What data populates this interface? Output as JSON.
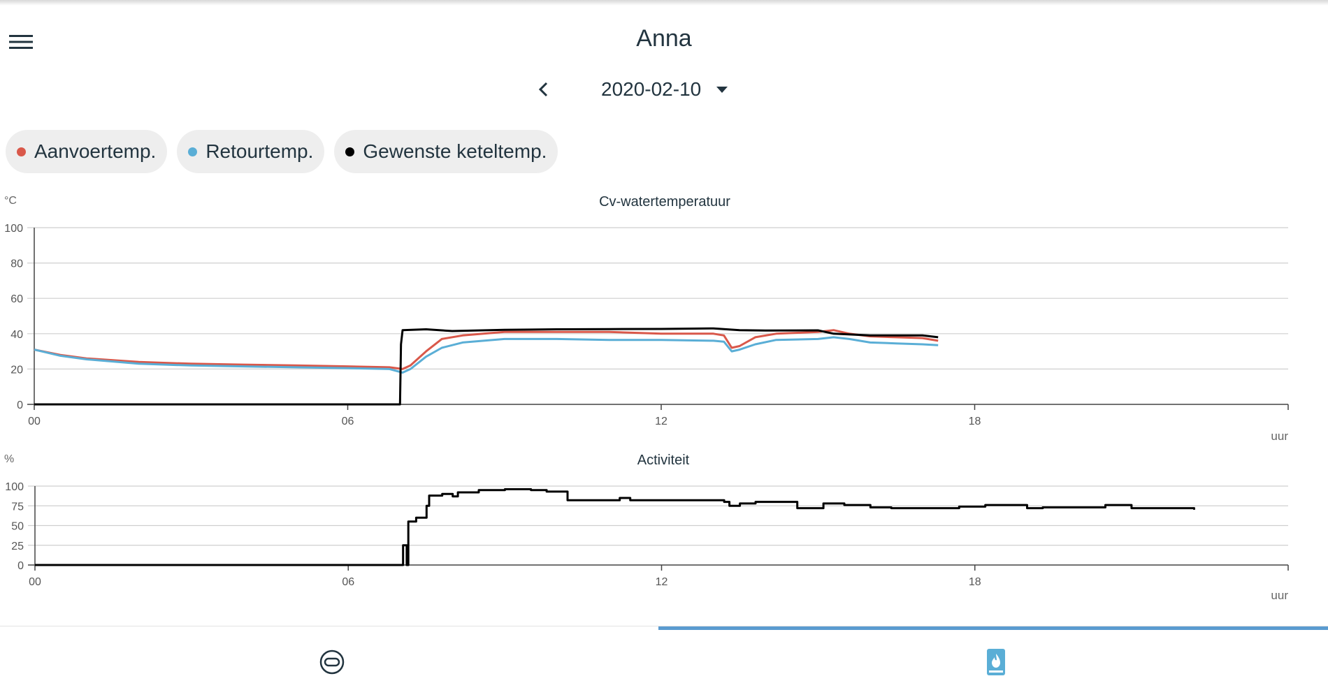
{
  "header": {
    "title": "Anna",
    "menu_icon": "hamburger-menu-icon"
  },
  "date_nav": {
    "prev_icon": "chevron-left-icon",
    "date": "2020-02-10",
    "dropdown_icon": "caret-down-icon"
  },
  "legend": [
    {
      "label": "Aanvoertemp.",
      "color": "#d9584a"
    },
    {
      "label": "Retourtemp.",
      "color": "#5aaed6"
    },
    {
      "label": "Gewenste keteltemp.",
      "color": "#000000"
    }
  ],
  "charts": {
    "temperature": {
      "title": "Cv-watertemperatuur",
      "unit": "°C",
      "xunit": "uur",
      "yticks": [
        "100",
        "80",
        "60",
        "40",
        "20",
        "0"
      ],
      "xticks": [
        "00",
        "06",
        "12",
        "18"
      ]
    },
    "activity": {
      "title": "Activiteit",
      "unit": "%",
      "xunit": "uur",
      "yticks": [
        "100",
        "75",
        "50",
        "25",
        "0"
      ],
      "xticks": [
        "00",
        "06",
        "12",
        "18"
      ]
    }
  },
  "chart_data": [
    {
      "type": "line",
      "title": "Cv-watertemperatuur",
      "xlabel": "uur",
      "ylabel": "°C",
      "xlim": [
        0,
        24
      ],
      "ylim": [
        0,
        100
      ],
      "series": [
        {
          "name": "Aanvoertemp.",
          "color": "#d9584a",
          "points": [
            [
              0,
              31
            ],
            [
              0.5,
              28
            ],
            [
              1,
              26
            ],
            [
              2,
              24
            ],
            [
              3,
              23
            ],
            [
              4,
              22.5
            ],
            [
              5,
              22
            ],
            [
              6,
              21.5
            ],
            [
              6.8,
              21
            ],
            [
              7.05,
              20
            ],
            [
              7.2,
              22
            ],
            [
              7.5,
              30
            ],
            [
              7.8,
              37
            ],
            [
              8.2,
              39
            ],
            [
              9,
              41
            ],
            [
              10,
              41
            ],
            [
              11,
              41
            ],
            [
              12,
              40
            ],
            [
              13,
              40
            ],
            [
              13.2,
              39
            ],
            [
              13.35,
              32
            ],
            [
              13.5,
              33
            ],
            [
              13.8,
              38
            ],
            [
              14.2,
              40
            ],
            [
              15,
              41
            ],
            [
              15.3,
              42
            ],
            [
              15.6,
              40
            ],
            [
              16,
              38.5
            ],
            [
              16.5,
              38
            ],
            [
              17,
              37.5
            ],
            [
              17.3,
              36
            ]
          ]
        },
        {
          "name": "Retourtemp.",
          "color": "#5aaed6",
          "points": [
            [
              0,
              31
            ],
            [
              0.5,
              27.5
            ],
            [
              1,
              25.5
            ],
            [
              2,
              23
            ],
            [
              3,
              22
            ],
            [
              4,
              21.5
            ],
            [
              5,
              21
            ],
            [
              6,
              20.5
            ],
            [
              6.8,
              20
            ],
            [
              7.05,
              18
            ],
            [
              7.2,
              20
            ],
            [
              7.5,
              27
            ],
            [
              7.8,
              32
            ],
            [
              8.2,
              35
            ],
            [
              9,
              37
            ],
            [
              10,
              37
            ],
            [
              11,
              36.5
            ],
            [
              12,
              36.5
            ],
            [
              13,
              36
            ],
            [
              13.2,
              35.5
            ],
            [
              13.35,
              30
            ],
            [
              13.5,
              31
            ],
            [
              13.8,
              34
            ],
            [
              14.2,
              36.5
            ],
            [
              15,
              37
            ],
            [
              15.3,
              38
            ],
            [
              15.6,
              37
            ],
            [
              16,
              35
            ],
            [
              16.5,
              34.5
            ],
            [
              17,
              34
            ],
            [
              17.3,
              33.5
            ]
          ]
        },
        {
          "name": "Gewenste keteltemp.",
          "color": "#000000",
          "points": [
            [
              0,
              0
            ],
            [
              7,
              0
            ],
            [
              7.02,
              34
            ],
            [
              7.05,
              42
            ],
            [
              7.5,
              42.5
            ],
            [
              8,
              41.5
            ],
            [
              9,
              42.2
            ],
            [
              10,
              42.5
            ],
            [
              11,
              42.6
            ],
            [
              12,
              42.7
            ],
            [
              13,
              43
            ],
            [
              13.5,
              42
            ],
            [
              14,
              41.8
            ],
            [
              15,
              41.9
            ],
            [
              15.3,
              40
            ],
            [
              16,
              39
            ],
            [
              17,
              39
            ],
            [
              17.3,
              38
            ]
          ]
        }
      ]
    },
    {
      "type": "line",
      "title": "Activiteit",
      "xlabel": "uur",
      "ylabel": "%",
      "xlim": [
        0,
        24
      ],
      "ylim": [
        0,
        100
      ],
      "series": [
        {
          "name": "Activiteit",
          "color": "#000000",
          "points": [
            [
              0,
              0
            ],
            [
              7.05,
              0
            ],
            [
              7.05,
              25
            ],
            [
              7.12,
              25
            ],
            [
              7.12,
              0
            ],
            [
              7.15,
              0
            ],
            [
              7.15,
              55
            ],
            [
              7.3,
              55
            ],
            [
              7.3,
              60
            ],
            [
              7.5,
              60
            ],
            [
              7.5,
              75
            ],
            [
              7.55,
              75
            ],
            [
              7.55,
              88
            ],
            [
              7.8,
              88
            ],
            [
              7.8,
              90
            ],
            [
              8,
              90
            ],
            [
              8,
              87
            ],
            [
              8.1,
              87
            ],
            [
              8.1,
              92
            ],
            [
              8.5,
              92
            ],
            [
              8.5,
              95
            ],
            [
              9,
              95
            ],
            [
              9,
              96
            ],
            [
              9.5,
              96
            ],
            [
              9.5,
              95
            ],
            [
              9.8,
              95
            ],
            [
              9.8,
              93
            ],
            [
              10.2,
              93
            ],
            [
              10.2,
              82
            ],
            [
              11.2,
              82
            ],
            [
              11.2,
              85
            ],
            [
              11.4,
              85
            ],
            [
              11.4,
              82
            ],
            [
              13.2,
              82
            ],
            [
              13.2,
              80
            ],
            [
              13.3,
              80
            ],
            [
              13.3,
              75
            ],
            [
              13.5,
              75
            ],
            [
              13.5,
              78
            ],
            [
              13.8,
              78
            ],
            [
              13.8,
              80
            ],
            [
              14.6,
              80
            ],
            [
              14.6,
              72
            ],
            [
              15.1,
              72
            ],
            [
              15.1,
              78
            ],
            [
              15.5,
              78
            ],
            [
              15.5,
              76
            ],
            [
              16,
              76
            ],
            [
              16,
              73
            ],
            [
              16.4,
              73
            ],
            [
              16.4,
              72
            ],
            [
              17.7,
              72
            ],
            [
              17.7,
              74
            ],
            [
              18.2,
              74
            ],
            [
              18.2,
              76
            ],
            [
              19,
              76
            ],
            [
              19,
              72
            ],
            [
              19.3,
              72
            ],
            [
              19.3,
              73
            ],
            [
              20.5,
              73
            ],
            [
              20.5,
              76
            ],
            [
              21,
              76
            ],
            [
              21,
              72
            ],
            [
              22,
              72
            ],
            [
              22.2,
              72
            ],
            [
              22.2,
              70
            ]
          ]
        }
      ]
    }
  ],
  "bottom_tabs": [
    {
      "name": "thermostat",
      "icon": "thermostat-icon",
      "active": false
    },
    {
      "name": "boiler",
      "icon": "boiler-flame-icon",
      "active": true
    }
  ]
}
